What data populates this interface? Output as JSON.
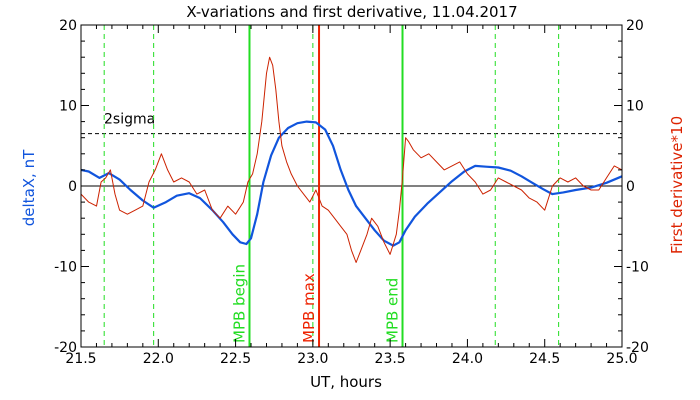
{
  "chart_data": {
    "type": "line",
    "title": "X-variations and first derivative, 11.04.2017",
    "xlabel": "UT, hours",
    "ylabel_left": "deltaX, nT",
    "ylabel_right": "First derivative*10",
    "xlim": [
      21.5,
      25.0
    ],
    "ylim": [
      -20,
      20
    ],
    "x_ticks": [
      "21.5",
      "22.0",
      "22.5",
      "23.0",
      "23.5",
      "24.0",
      "24.5",
      "25.0"
    ],
    "y_ticks_left": [
      "20",
      "10",
      "0",
      "-10",
      "-20"
    ],
    "y_ticks_right": [
      "20",
      "10",
      "0",
      "-10",
      "-20"
    ],
    "sigma_label": "2sigma",
    "sigma_level": 6.5,
    "zero_line": 0,
    "dashed_markers_x": [
      21.65,
      21.97,
      23.0,
      24.18,
      24.59
    ],
    "events": [
      {
        "label": "MPB begin",
        "x": 22.59,
        "color": "#22dd22"
      },
      {
        "label": "MPB max",
        "x": 23.04,
        "color": "#ee2200"
      },
      {
        "label": "MPB end",
        "x": 23.58,
        "color": "#22dd22"
      }
    ],
    "series": [
      {
        "name": "deltaX",
        "color": "#1155dd",
        "x": [
          21.5,
          21.55,
          21.62,
          21.68,
          21.75,
          21.82,
          21.9,
          21.97,
          22.05,
          22.12,
          22.2,
          22.27,
          22.35,
          22.42,
          22.48,
          22.53,
          22.57,
          22.6,
          22.64,
          22.68,
          22.73,
          22.78,
          22.84,
          22.9,
          22.96,
          23.02,
          23.08,
          23.13,
          23.18,
          23.23,
          23.28,
          23.34,
          23.4,
          23.46,
          23.52,
          23.56,
          23.6,
          23.66,
          23.74,
          23.82,
          23.9,
          23.98,
          24.05,
          24.12,
          24.2,
          24.28,
          24.35,
          24.42,
          24.49,
          24.55,
          24.62,
          24.7,
          24.8,
          24.9,
          25.0
        ],
        "y": [
          2.0,
          1.8,
          1.0,
          1.6,
          0.8,
          -0.5,
          -1.8,
          -2.7,
          -2.0,
          -1.2,
          -0.9,
          -1.5,
          -3.0,
          -4.5,
          -6.0,
          -7.0,
          -7.2,
          -6.5,
          -3.5,
          0.5,
          3.8,
          6.0,
          7.2,
          7.8,
          8.0,
          7.9,
          7.0,
          5.0,
          2.0,
          -0.5,
          -2.5,
          -4.0,
          -5.5,
          -6.8,
          -7.4,
          -7.0,
          -5.5,
          -3.8,
          -2.2,
          -0.8,
          0.6,
          1.8,
          2.5,
          2.4,
          2.3,
          1.9,
          1.2,
          0.4,
          -0.4,
          -1.0,
          -0.8,
          -0.5,
          -0.2,
          0.4,
          1.2
        ]
      },
      {
        "name": "First derivative*10",
        "color": "#cc2200",
        "x": [
          21.5,
          21.55,
          21.6,
          21.63,
          21.66,
          21.69,
          21.72,
          21.75,
          21.8,
          21.85,
          21.9,
          21.94,
          21.98,
          22.02,
          22.06,
          22.1,
          22.15,
          22.2,
          22.25,
          22.3,
          22.35,
          22.4,
          22.45,
          22.5,
          22.55,
          22.58,
          22.61,
          22.64,
          22.67,
          22.7,
          22.72,
          22.74,
          22.76,
          22.78,
          22.8,
          22.83,
          22.86,
          22.9,
          22.94,
          22.98,
          23.02,
          23.06,
          23.1,
          23.14,
          23.18,
          23.22,
          23.25,
          23.28,
          23.31,
          23.35,
          23.38,
          23.42,
          23.46,
          23.5,
          23.54,
          23.56,
          23.58,
          23.6,
          23.62,
          23.65,
          23.7,
          23.75,
          23.8,
          23.85,
          23.9,
          23.95,
          24.0,
          24.05,
          24.1,
          24.15,
          24.2,
          24.25,
          24.3,
          24.35,
          24.4,
          24.45,
          24.5,
          24.55,
          24.6,
          24.65,
          24.7,
          24.75,
          24.8,
          24.85,
          24.9,
          24.95,
          25.0
        ],
        "y": [
          -1.0,
          -2.0,
          -2.5,
          0.5,
          1.0,
          2.0,
          -1.0,
          -3.0,
          -3.5,
          -3.0,
          -2.5,
          0.5,
          2.0,
          4.0,
          2.0,
          0.5,
          1.0,
          0.5,
          -1.0,
          -0.5,
          -3.0,
          -4.0,
          -2.5,
          -3.5,
          -2.0,
          0.5,
          1.5,
          4.0,
          8.0,
          14.0,
          16.0,
          15.0,
          12.0,
          8.0,
          5.0,
          3.0,
          1.5,
          0.0,
          -1.0,
          -2.0,
          -0.5,
          -2.5,
          -3.0,
          -4.0,
          -5.0,
          -6.0,
          -8.0,
          -9.5,
          -8.0,
          -6.0,
          -4.0,
          -5.0,
          -7.0,
          -8.5,
          -6.0,
          -3.0,
          1.0,
          6.0,
          5.5,
          4.5,
          3.5,
          4.0,
          3.0,
          2.0,
          2.5,
          3.0,
          1.5,
          0.5,
          -1.0,
          -0.5,
          1.0,
          0.5,
          0.0,
          -0.5,
          -1.5,
          -2.0,
          -3.0,
          0.0,
          1.0,
          0.5,
          1.0,
          0.0,
          -0.5,
          -0.5,
          1.0,
          2.5,
          2.0
        ]
      }
    ]
  }
}
